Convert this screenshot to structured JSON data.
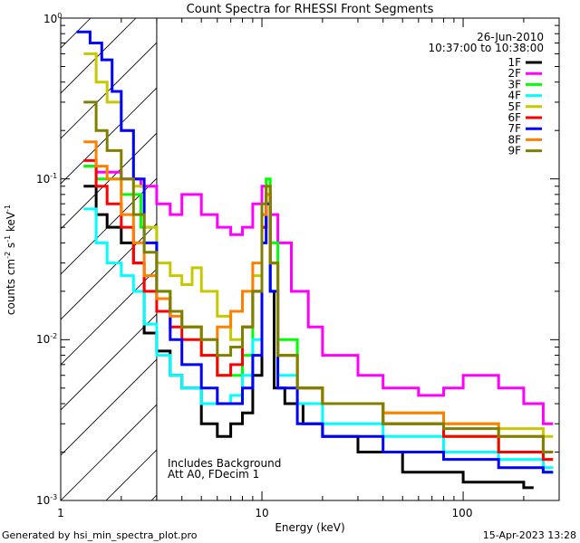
{
  "chart_data": {
    "type": "line",
    "title": "Count Spectra for RHESSI Front Segments",
    "xlabel": "Energy (keV)",
    "ylabel_parts": {
      "base": "counts cm",
      "exp1": "-2",
      "mid": " s",
      "exp2": "-1",
      "end": " keV",
      "exp3": "-1"
    },
    "xscale": "log",
    "yscale": "log",
    "xlim": [
      1,
      300
    ],
    "ylim": [
      0.001,
      1
    ],
    "x_tick_labels": [
      "1",
      "10",
      "100"
    ],
    "y_tick_labels": [
      {
        "base": "10",
        "exp": "-3",
        "value": 0.001
      },
      {
        "base": "10",
        "exp": "-2",
        "value": 0.01
      },
      {
        "base": "10",
        "exp": "-1",
        "value": 0.1
      },
      {
        "base": "10",
        "exp": "0",
        "value": 1
      }
    ],
    "hatch_region_kev": [
      1,
      3
    ],
    "date": "26-Jun-2010",
    "time_range": "10:37:00 to 10:38:00",
    "annotation_lines": [
      "Includes Background",
      "Att A0, FDecim 1"
    ],
    "legend_position": "top-right",
    "series": [
      {
        "name": "1F",
        "color": "#000000",
        "points": [
          [
            1.3,
            0.09
          ],
          [
            1.5,
            0.06
          ],
          [
            1.7,
            0.05
          ],
          [
            2.0,
            0.04
          ],
          [
            2.3,
            0.03
          ],
          [
            2.6,
            0.011
          ],
          [
            3.0,
            0.0085
          ],
          [
            3.5,
            0.006
          ],
          [
            4.0,
            0.005
          ],
          [
            5.0,
            0.003
          ],
          [
            6.0,
            0.0025
          ],
          [
            7.0,
            0.003
          ],
          [
            8.0,
            0.0035
          ],
          [
            9.0,
            0.006
          ],
          [
            10.0,
            0.05
          ],
          [
            10.5,
            0.07
          ],
          [
            11.0,
            0.02
          ],
          [
            11.5,
            0.005
          ],
          [
            13.0,
            0.004
          ],
          [
            16.0,
            0.003
          ],
          [
            20.0,
            0.0025
          ],
          [
            30.0,
            0.002
          ],
          [
            50.0,
            0.0015
          ],
          [
            100.0,
            0.0013
          ],
          [
            200.0,
            0.0012
          ]
        ]
      },
      {
        "name": "2F",
        "color": "#ff00ff",
        "points": [
          [
            1.3,
            0.12
          ],
          [
            1.5,
            0.11
          ],
          [
            2.0,
            0.1
          ],
          [
            2.5,
            0.09
          ],
          [
            3.0,
            0.07
          ],
          [
            3.5,
            0.06
          ],
          [
            4.0,
            0.08
          ],
          [
            5.0,
            0.06
          ],
          [
            6.0,
            0.05
          ],
          [
            7.0,
            0.045
          ],
          [
            8.0,
            0.05
          ],
          [
            9.0,
            0.07
          ],
          [
            10.0,
            0.09
          ],
          [
            11.0,
            0.06
          ],
          [
            12.0,
            0.04
          ],
          [
            14.0,
            0.02
          ],
          [
            17.0,
            0.012
          ],
          [
            20.0,
            0.008
          ],
          [
            30.0,
            0.006
          ],
          [
            40.0,
            0.005
          ],
          [
            60.0,
            0.0045
          ],
          [
            80.0,
            0.005
          ],
          [
            100.0,
            0.006
          ],
          [
            150.0,
            0.005
          ],
          [
            200.0,
            0.004
          ],
          [
            250.0,
            0.003
          ]
        ]
      },
      {
        "name": "3F",
        "color": "#00ff00",
        "points": [
          [
            1.3,
            0.12
          ],
          [
            1.5,
            0.1
          ],
          [
            2.0,
            0.08
          ],
          [
            2.5,
            0.05
          ],
          [
            3.0,
            0.02
          ],
          [
            3.5,
            0.015
          ],
          [
            4.0,
            0.012
          ],
          [
            5.0,
            0.008
          ],
          [
            6.0,
            0.006
          ],
          [
            7.0,
            0.006
          ],
          [
            8.0,
            0.008
          ],
          [
            9.0,
            0.02
          ],
          [
            10.0,
            0.06
          ],
          [
            10.5,
            0.1
          ],
          [
            11.0,
            0.04
          ],
          [
            12.0,
            0.01
          ],
          [
            15.0,
            0.005
          ],
          [
            20.0,
            0.004
          ],
          [
            40.0,
            0.003
          ],
          [
            80.0,
            0.0025
          ],
          [
            150.0,
            0.002
          ],
          [
            250.0,
            0.0015
          ]
        ]
      },
      {
        "name": "4F",
        "color": "#00ffff",
        "points": [
          [
            1.3,
            0.065
          ],
          [
            1.5,
            0.04
          ],
          [
            1.7,
            0.03
          ],
          [
            2.0,
            0.025
          ],
          [
            2.3,
            0.02
          ],
          [
            2.6,
            0.0125
          ],
          [
            3.0,
            0.008
          ],
          [
            3.5,
            0.006
          ],
          [
            4.0,
            0.005
          ],
          [
            5.0,
            0.004
          ],
          [
            6.0,
            0.004
          ],
          [
            7.0,
            0.0045
          ],
          [
            8.0,
            0.006
          ],
          [
            9.0,
            0.01
          ],
          [
            10.0,
            0.05
          ],
          [
            10.5,
            0.08
          ],
          [
            11.0,
            0.02
          ],
          [
            12.0,
            0.006
          ],
          [
            15.0,
            0.004
          ],
          [
            20.0,
            0.003
          ],
          [
            40.0,
            0.0025
          ],
          [
            80.0,
            0.002
          ],
          [
            150.0,
            0.0018
          ],
          [
            250.0,
            0.0016
          ]
        ]
      },
      {
        "name": "5F",
        "color": "#c8c800",
        "points": [
          [
            1.3,
            0.6
          ],
          [
            1.5,
            0.4
          ],
          [
            1.7,
            0.3
          ],
          [
            2.0,
            0.2
          ],
          [
            2.3,
            0.09
          ],
          [
            2.6,
            0.05
          ],
          [
            3.0,
            0.03
          ],
          [
            3.5,
            0.025
          ],
          [
            4.0,
            0.022
          ],
          [
            4.5,
            0.028
          ],
          [
            5.0,
            0.02
          ],
          [
            6.0,
            0.014
          ],
          [
            7.0,
            0.01
          ],
          [
            8.0,
            0.012
          ],
          [
            9.0,
            0.025
          ],
          [
            10.0,
            0.06
          ],
          [
            10.5,
            0.09
          ],
          [
            11.0,
            0.03
          ],
          [
            12.0,
            0.008
          ],
          [
            15.0,
            0.005
          ],
          [
            20.0,
            0.004
          ],
          [
            40.0,
            0.0035
          ],
          [
            80.0,
            0.003
          ],
          [
            150.0,
            0.0028
          ],
          [
            250.0,
            0.0025
          ]
        ]
      },
      {
        "name": "6F",
        "color": "#ff0000",
        "points": [
          [
            1.3,
            0.13
          ],
          [
            1.5,
            0.09
          ],
          [
            1.7,
            0.07
          ],
          [
            2.0,
            0.05
          ],
          [
            2.3,
            0.03
          ],
          [
            2.6,
            0.02
          ],
          [
            3.0,
            0.015
          ],
          [
            3.5,
            0.012
          ],
          [
            4.0,
            0.01
          ],
          [
            5.0,
            0.008
          ],
          [
            6.0,
            0.006
          ],
          [
            7.0,
            0.007
          ],
          [
            8.0,
            0.012
          ],
          [
            9.0,
            0.02
          ],
          [
            10.0,
            0.05
          ],
          [
            10.5,
            0.08
          ],
          [
            11.0,
            0.03
          ],
          [
            12.0,
            0.008
          ],
          [
            15.0,
            0.005
          ],
          [
            20.0,
            0.004
          ],
          [
            40.0,
            0.003
          ],
          [
            80.0,
            0.0025
          ],
          [
            150.0,
            0.002
          ],
          [
            250.0,
            0.0018
          ]
        ]
      },
      {
        "name": "7F",
        "color": "#0000ff",
        "points": [
          [
            1.2,
            0.82
          ],
          [
            1.4,
            0.7
          ],
          [
            1.6,
            0.55
          ],
          [
            1.8,
            0.35
          ],
          [
            2.0,
            0.2
          ],
          [
            2.3,
            0.1
          ],
          [
            2.6,
            0.04
          ],
          [
            3.0,
            0.018
          ],
          [
            3.5,
            0.01
          ],
          [
            4.0,
            0.007
          ],
          [
            5.0,
            0.005
          ],
          [
            6.0,
            0.004
          ],
          [
            7.0,
            0.004
          ],
          [
            8.0,
            0.005
          ],
          [
            9.0,
            0.008
          ],
          [
            10.0,
            0.04
          ],
          [
            10.5,
            0.07
          ],
          [
            11.0,
            0.02
          ],
          [
            12.0,
            0.005
          ],
          [
            15.0,
            0.003
          ],
          [
            20.0,
            0.0025
          ],
          [
            40.0,
            0.002
          ],
          [
            80.0,
            0.0018
          ],
          [
            150.0,
            0.0016
          ],
          [
            250.0,
            0.0015
          ]
        ]
      },
      {
        "name": "8F",
        "color": "#ff8000",
        "points": [
          [
            1.3,
            0.17
          ],
          [
            1.5,
            0.12
          ],
          [
            1.7,
            0.1
          ],
          [
            2.0,
            0.06
          ],
          [
            2.3,
            0.04
          ],
          [
            2.6,
            0.025
          ],
          [
            3.0,
            0.018
          ],
          [
            3.5,
            0.014
          ],
          [
            4.0,
            0.012
          ],
          [
            5.0,
            0.01
          ],
          [
            6.0,
            0.012
          ],
          [
            7.0,
            0.015
          ],
          [
            8.0,
            0.02
          ],
          [
            9.0,
            0.03
          ],
          [
            10.0,
            0.06
          ],
          [
            10.5,
            0.08
          ],
          [
            11.0,
            0.03
          ],
          [
            12.0,
            0.008
          ],
          [
            15.0,
            0.005
          ],
          [
            20.0,
            0.004
          ],
          [
            40.0,
            0.0035
          ],
          [
            80.0,
            0.003
          ],
          [
            150.0,
            0.0025
          ],
          [
            250.0,
            0.002
          ]
        ]
      },
      {
        "name": "9F",
        "color": "#808000",
        "points": [
          [
            1.3,
            0.3
          ],
          [
            1.5,
            0.2
          ],
          [
            1.7,
            0.15
          ],
          [
            2.0,
            0.1
          ],
          [
            2.3,
            0.06
          ],
          [
            2.6,
            0.035
          ],
          [
            3.0,
            0.02
          ],
          [
            3.5,
            0.015
          ],
          [
            4.0,
            0.012
          ],
          [
            5.0,
            0.01
          ],
          [
            6.0,
            0.008
          ],
          [
            7.0,
            0.009
          ],
          [
            8.0,
            0.012
          ],
          [
            9.0,
            0.02
          ],
          [
            10.0,
            0.07
          ],
          [
            10.5,
            0.09
          ],
          [
            11.0,
            0.03
          ],
          [
            12.0,
            0.008
          ],
          [
            15.0,
            0.005
          ],
          [
            20.0,
            0.004
          ],
          [
            40.0,
            0.003
          ],
          [
            80.0,
            0.0028
          ],
          [
            150.0,
            0.0025
          ],
          [
            250.0,
            0.002
          ]
        ]
      }
    ]
  },
  "footer": {
    "left": "Generated by hsi_min_spectra_plot.pro",
    "right": "15-Apr-2023 13:28"
  }
}
